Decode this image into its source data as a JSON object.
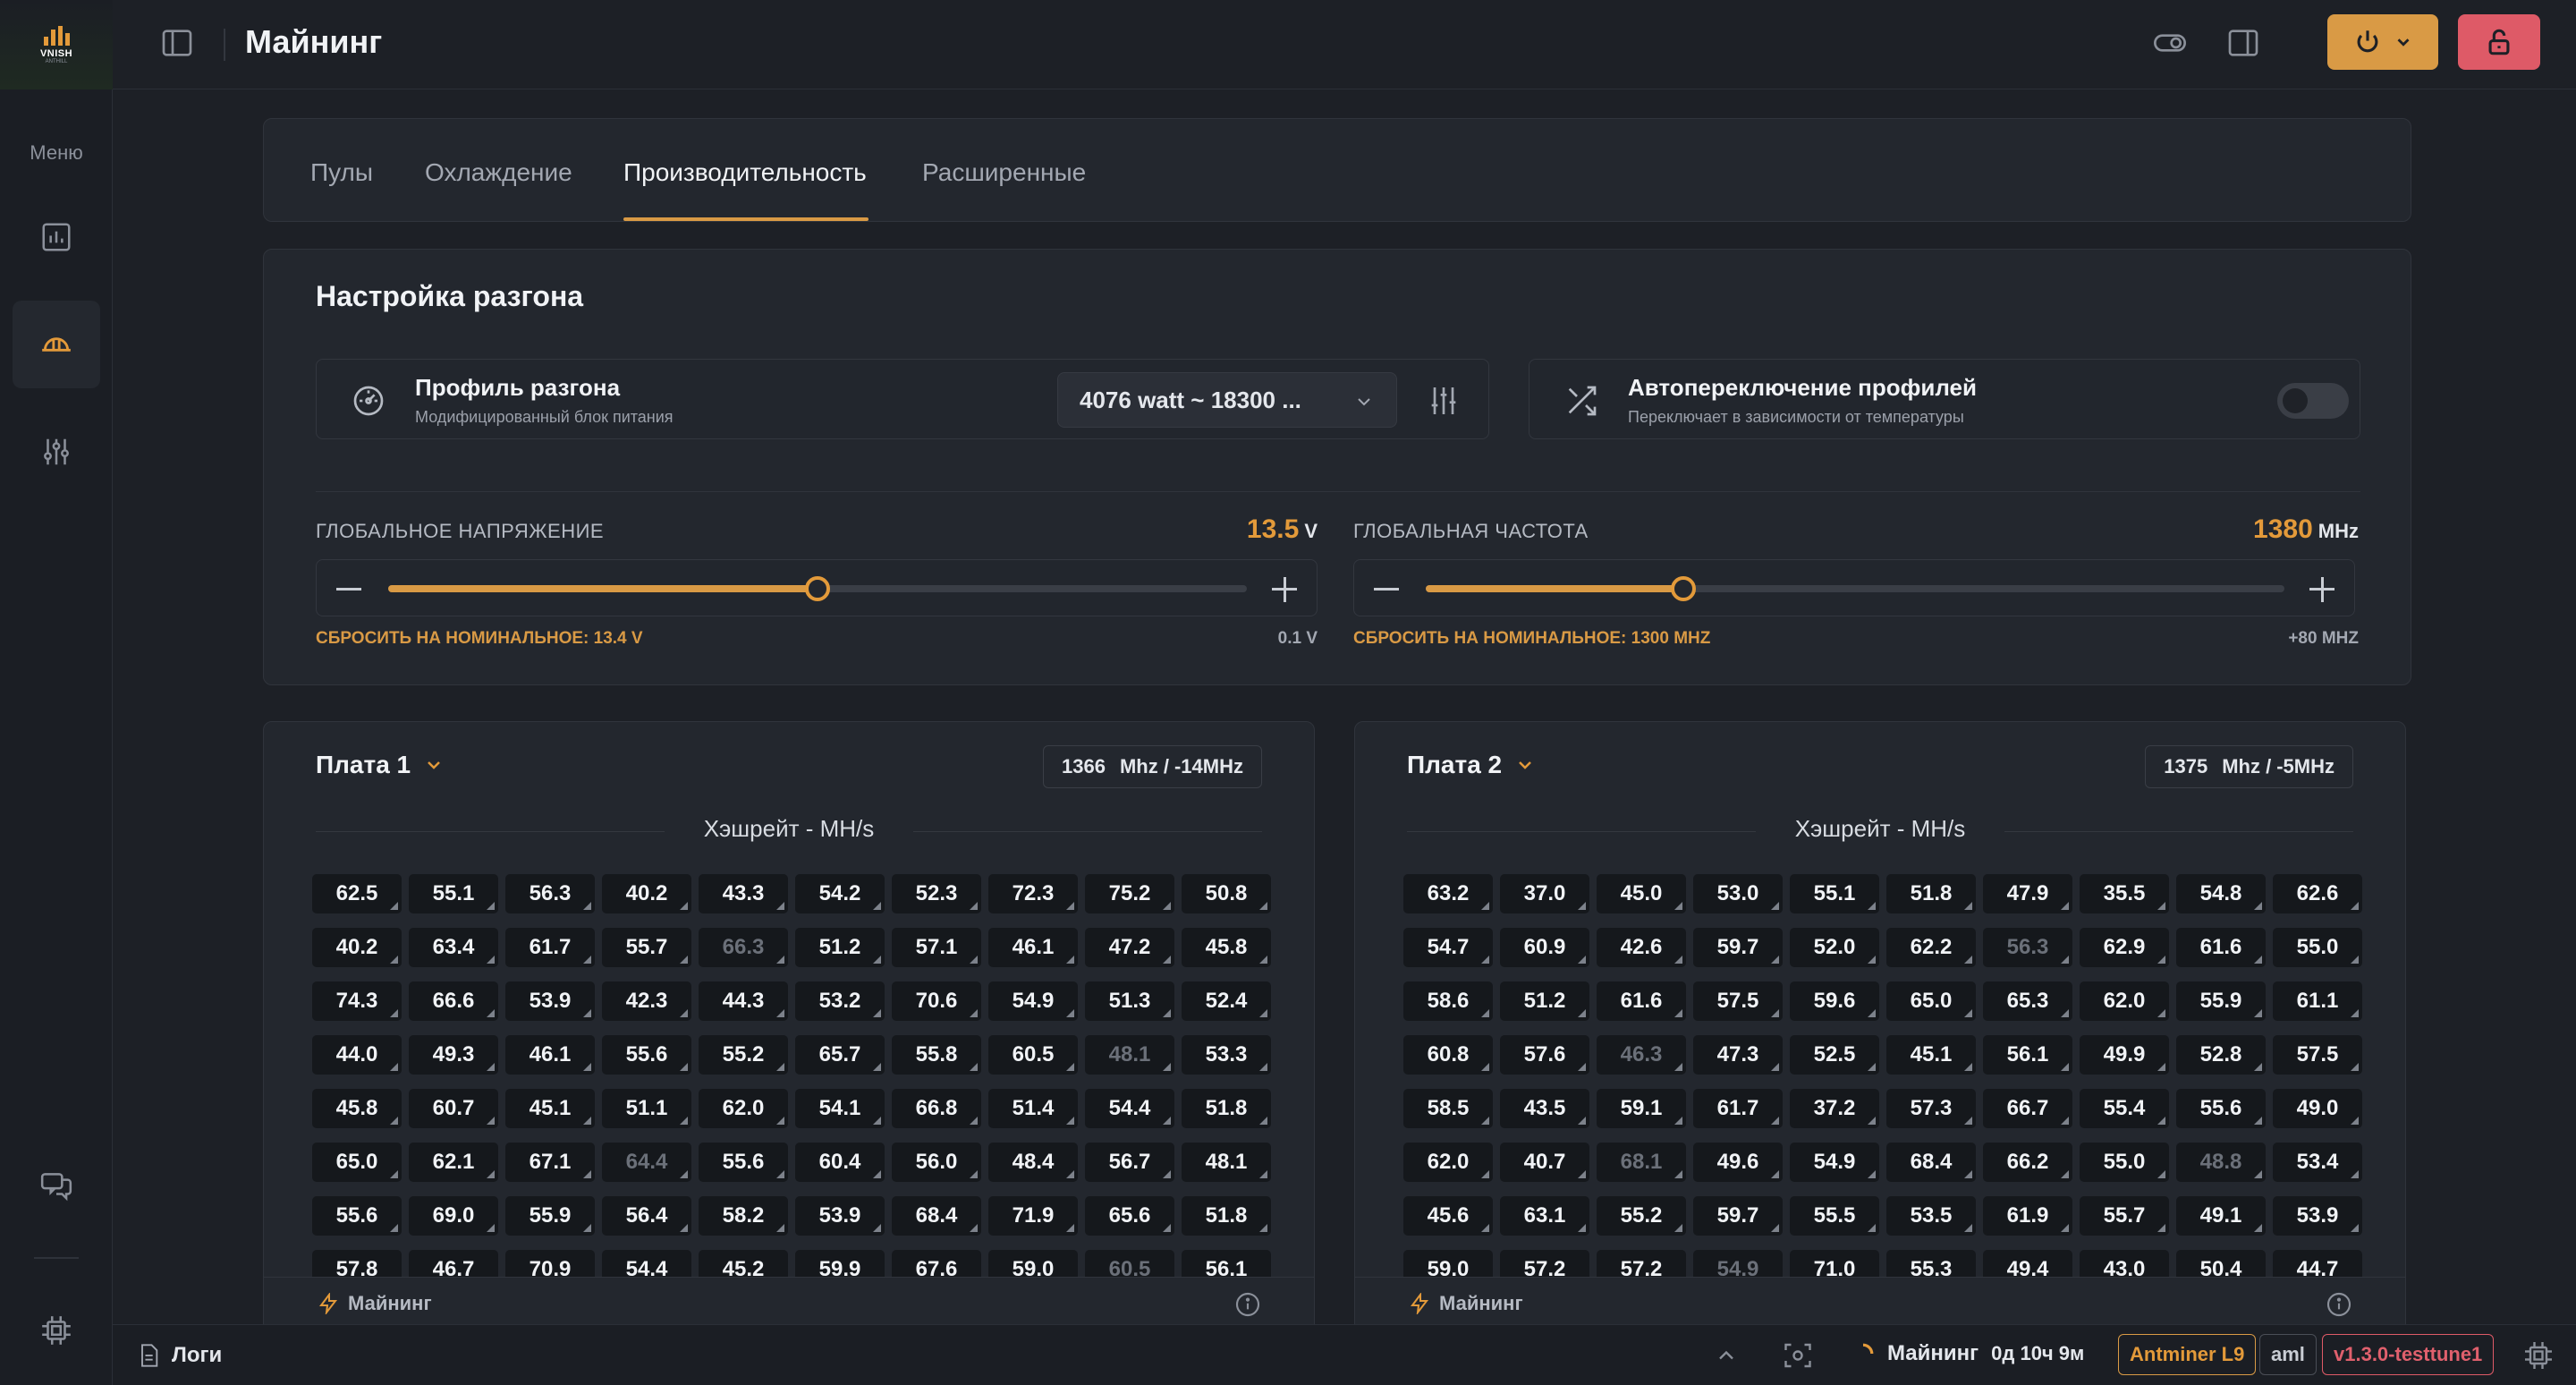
{
  "brand": {
    "logo_text": "VNISH",
    "logo_sub": "ANTHILL",
    "accent": "#d99a45",
    "danger": "#de5a67"
  },
  "sidebar": {
    "menu_label": "Меню",
    "items": [
      {
        "icon": "chart-icon"
      },
      {
        "icon": "miner-helmet-icon",
        "active": true
      },
      {
        "icon": "sliders-icon"
      },
      {
        "icon": "chat-icon"
      },
      {
        "icon": "chip-icon"
      }
    ]
  },
  "header": {
    "title": "Майнинг"
  },
  "tabs": [
    {
      "label": "Пулы"
    },
    {
      "label": "Охлаждение"
    },
    {
      "label": "Производительность",
      "active": true
    },
    {
      "label": "Расширенные"
    }
  ],
  "overclock": {
    "title": "Настройка разгона",
    "profile": {
      "title": "Профиль разгона",
      "desc": "Модифицированный блок питания",
      "selected": "4076 watt ~ 18300 ..."
    },
    "autoswitch": {
      "title": "Автопереключение профилей",
      "desc": "Переключает в зависимости от температуры",
      "enabled": false
    },
    "voltage": {
      "label": "ГЛОБАЛЬНОЕ НАПРЯЖЕНИЕ",
      "value": "13.5",
      "unit": "V",
      "level": 0.5,
      "reset": "СБРОСИТЬ НА НОМИНАЛЬНОЕ: 13.4 V",
      "step": "0.1 V"
    },
    "frequency": {
      "label": "ГЛОБАЛЬНАЯ ЧАСТОТА",
      "value": "1380",
      "unit": "MHz",
      "level": 0.3,
      "reset": "СБРОСИТЬ НА НОМИНАЛЬНОЕ: 1300 MHZ",
      "step": "+80 MHZ"
    }
  },
  "boards": [
    {
      "name": "Плата 1",
      "freq": "1366",
      "freq_unit": "Mhz /",
      "offset": "-14MHz",
      "hash_title": "Хэшрейт - MH/s",
      "footer": "Майнинг",
      "chips": [
        "62.5",
        "55.1",
        "56.3",
        "40.2",
        "43.3",
        "54.2",
        "52.3",
        "72.3",
        "75.2",
        "50.8",
        "40.2",
        "63.4",
        "61.7",
        "55.7",
        "66.3",
        "51.2",
        "57.1",
        "46.1",
        "47.2",
        "45.8",
        "74.3",
        "66.6",
        "53.9",
        "42.3",
        "44.3",
        "53.2",
        "70.6",
        "54.9",
        "51.3",
        "52.4",
        "44.0",
        "49.3",
        "46.1",
        "55.6",
        "55.2",
        "65.7",
        "55.8",
        "60.5",
        "48.1",
        "53.3",
        "45.8",
        "60.7",
        "45.1",
        "51.1",
        "62.0",
        "54.1",
        "66.8",
        "51.4",
        "54.4",
        "51.8",
        "65.0",
        "62.1",
        "67.1",
        "64.4",
        "55.6",
        "60.4",
        "56.0",
        "48.4",
        "56.7",
        "48.1",
        "55.6",
        "69.0",
        "55.9",
        "56.4",
        "58.2",
        "53.9",
        "68.4",
        "71.9",
        "65.6",
        "51.8",
        "57.8",
        "46.7",
        "70.9",
        "54.4",
        "45.2",
        "59.9",
        "67.6",
        "59.0",
        "60.5",
        "56.1"
      ],
      "dim": [
        14,
        38,
        53,
        78
      ]
    },
    {
      "name": "Плата 2",
      "freq": "1375",
      "freq_unit": "Mhz /",
      "offset": "-5MHz",
      "hash_title": "Хэшрейт - MH/s",
      "footer": "Майнинг",
      "chips": [
        "63.2",
        "37.0",
        "45.0",
        "53.0",
        "55.1",
        "51.8",
        "47.9",
        "35.5",
        "54.8",
        "62.6",
        "54.7",
        "60.9",
        "42.6",
        "59.7",
        "52.0",
        "62.2",
        "56.3",
        "62.9",
        "61.6",
        "55.0",
        "58.6",
        "51.2",
        "61.6",
        "57.5",
        "59.6",
        "65.0",
        "65.3",
        "62.0",
        "55.9",
        "61.1",
        "60.8",
        "57.6",
        "46.3",
        "47.3",
        "52.5",
        "45.1",
        "56.1",
        "49.9",
        "52.8",
        "57.5",
        "58.5",
        "43.5",
        "59.1",
        "61.7",
        "37.2",
        "57.3",
        "66.7",
        "55.4",
        "55.6",
        "49.0",
        "62.0",
        "40.7",
        "68.1",
        "49.6",
        "54.9",
        "68.4",
        "66.2",
        "55.0",
        "48.8",
        "53.4",
        "45.6",
        "63.1",
        "55.2",
        "59.7",
        "55.5",
        "53.5",
        "61.9",
        "55.7",
        "49.1",
        "53.9",
        "59.0",
        "57.2",
        "57.2",
        "54.9",
        "71.0",
        "55.3",
        "49.4",
        "43.0",
        "50.4",
        "44.7"
      ],
      "dim": [
        16,
        32,
        52,
        58,
        73
      ]
    }
  ],
  "bottombar": {
    "logs": "Логи",
    "status": "Майнинг",
    "uptime": "0д 10ч 9м",
    "model": "Antminer L9",
    "chip": "aml",
    "version": "v1.3.0-testtune1"
  }
}
